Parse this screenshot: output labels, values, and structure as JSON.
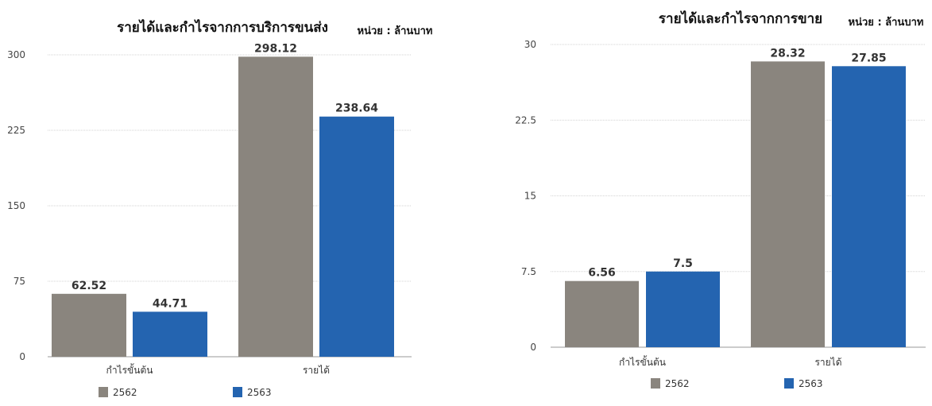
{
  "chart_data": [
    {
      "type": "bar",
      "title": "รายได้และกำไรจากการบริการขนส่ง",
      "unit": "หน่วย : ล้านบาท",
      "categories": [
        "กำไรขั้นต้น",
        "รายได้"
      ],
      "series": [
        {
          "name": "2562",
          "values": [
            62.52,
            298.12
          ],
          "labels": [
            "62.52",
            "298.12"
          ],
          "color": "#8a857e"
        },
        {
          "name": "2563",
          "values": [
            44.71,
            238.64
          ],
          "labels": [
            "44.71",
            "238.64"
          ],
          "color": "#2464b0"
        }
      ],
      "yticks": [
        "0",
        "75",
        "150",
        "225",
        "300"
      ],
      "ylim": [
        0,
        300
      ],
      "grid": true,
      "legend": "bottom"
    },
    {
      "type": "bar",
      "title": "รายได้และกำไรจากการขาย",
      "unit": "หน่วย : ล้านบาท",
      "categories": [
        "กำไรขั้นต้น",
        "รายได้"
      ],
      "series": [
        {
          "name": "2562",
          "values": [
            6.56,
            28.32
          ],
          "labels": [
            "6.56",
            "28.32"
          ],
          "color": "#8a857e"
        },
        {
          "name": "2563",
          "values": [
            7.5,
            27.85
          ],
          "labels": [
            "7.5",
            "27.85"
          ],
          "color": "#2464b0"
        }
      ],
      "yticks": [
        "0",
        "7.5",
        "15",
        "22.5",
        "30"
      ],
      "ylim": [
        0,
        30
      ],
      "grid": true,
      "legend": "bottom"
    }
  ]
}
